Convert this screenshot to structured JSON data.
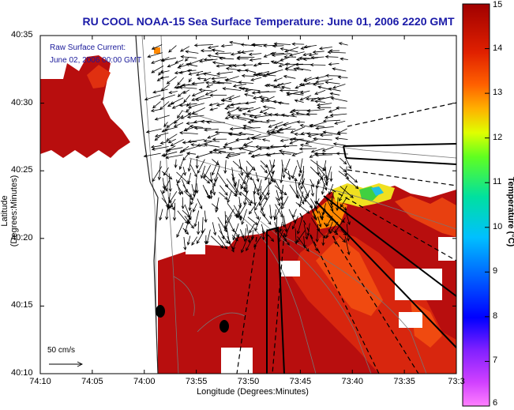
{
  "title": "RU COOL  NOAA-15  Sea Surface Temperature:  June 01, 2006 2220 GMT",
  "overlay": {
    "line1": "Raw Surface Current:",
    "line2": "June 02, 2006 00:00 GMT",
    "scale_label": "50 cm/s"
  },
  "axes": {
    "xlabel": "Longitude (Degrees:Minutes)",
    "ylabel": "Latitude (Degrees:Minutes)",
    "xticks": [
      "74:10",
      "74:05",
      "74:00",
      "73:55",
      "73:50",
      "73:45",
      "73:40",
      "73:35",
      "73:3"
    ],
    "yticks": [
      "40:35",
      "40:30",
      "40:25",
      "40:20",
      "40:15",
      "40:10"
    ]
  },
  "colorbar": {
    "label": "Temperature (°C)",
    "ticks": [
      "15",
      "14",
      "13",
      "12",
      "11",
      "10",
      "9",
      "8",
      "7",
      "6"
    ],
    "range": [
      6,
      15
    ]
  },
  "colors": {
    "title": "#1a1aa8",
    "sst_warm": "#b80e0e",
    "sst_hot": "#e03010",
    "sst_orange": "#ff8800",
    "sst_yellow": "#f0e020",
    "sst_green": "#40d040",
    "sst_cyan": "#20c0e0",
    "land": "#ffffff"
  }
}
